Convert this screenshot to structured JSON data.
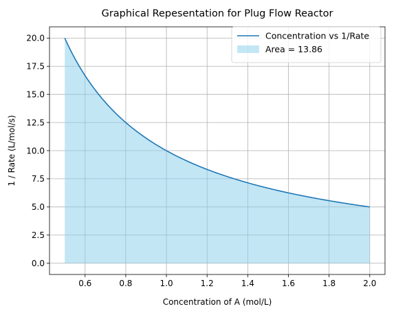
{
  "chart_data": {
    "type": "area",
    "title": "Graphical Repesentation for Plug Flow Reactor",
    "xlabel": "Concentration of A (mol/L)",
    "ylabel": "1 / Rate (L/mol/s)",
    "xlim": [
      0.425,
      2.075
    ],
    "ylim": [
      -1.0,
      21.0
    ],
    "x_ticks": [
      "0.6",
      "0.8",
      "1.0",
      "1.2",
      "1.4",
      "1.6",
      "1.8",
      "2.0"
    ],
    "x_tick_values": [
      0.6,
      0.8,
      1.0,
      1.2,
      1.4,
      1.6,
      1.8,
      2.0
    ],
    "y_ticks": [
      "0.0",
      "2.5",
      "5.0",
      "7.5",
      "10.0",
      "12.5",
      "15.0",
      "17.5",
      "20.0"
    ],
    "y_tick_values": [
      0.0,
      2.5,
      5.0,
      7.5,
      10.0,
      12.5,
      15.0,
      17.5,
      20.0
    ],
    "grid": true,
    "legend_position": "top-right",
    "series": [
      {
        "name": "Concentration vs 1/Rate",
        "kind": "line",
        "color": "#1f77b4",
        "x": [
          0.5,
          0.55,
          0.6,
          0.65,
          0.7,
          0.75,
          0.8,
          0.85,
          0.9,
          0.95,
          1.0,
          1.1,
          1.2,
          1.3,
          1.4,
          1.5,
          1.6,
          1.7,
          1.8,
          1.9,
          2.0
        ],
        "y": [
          20.0,
          18.18,
          16.67,
          15.38,
          14.29,
          13.33,
          12.5,
          11.76,
          11.11,
          10.53,
          10.0,
          9.09,
          8.33,
          7.69,
          7.14,
          6.67,
          6.25,
          5.88,
          5.56,
          5.26,
          5.0
        ]
      },
      {
        "name": "Area = 13.86",
        "kind": "fill",
        "color": "#87ceeb",
        "opacity": 0.5
      }
    ]
  }
}
